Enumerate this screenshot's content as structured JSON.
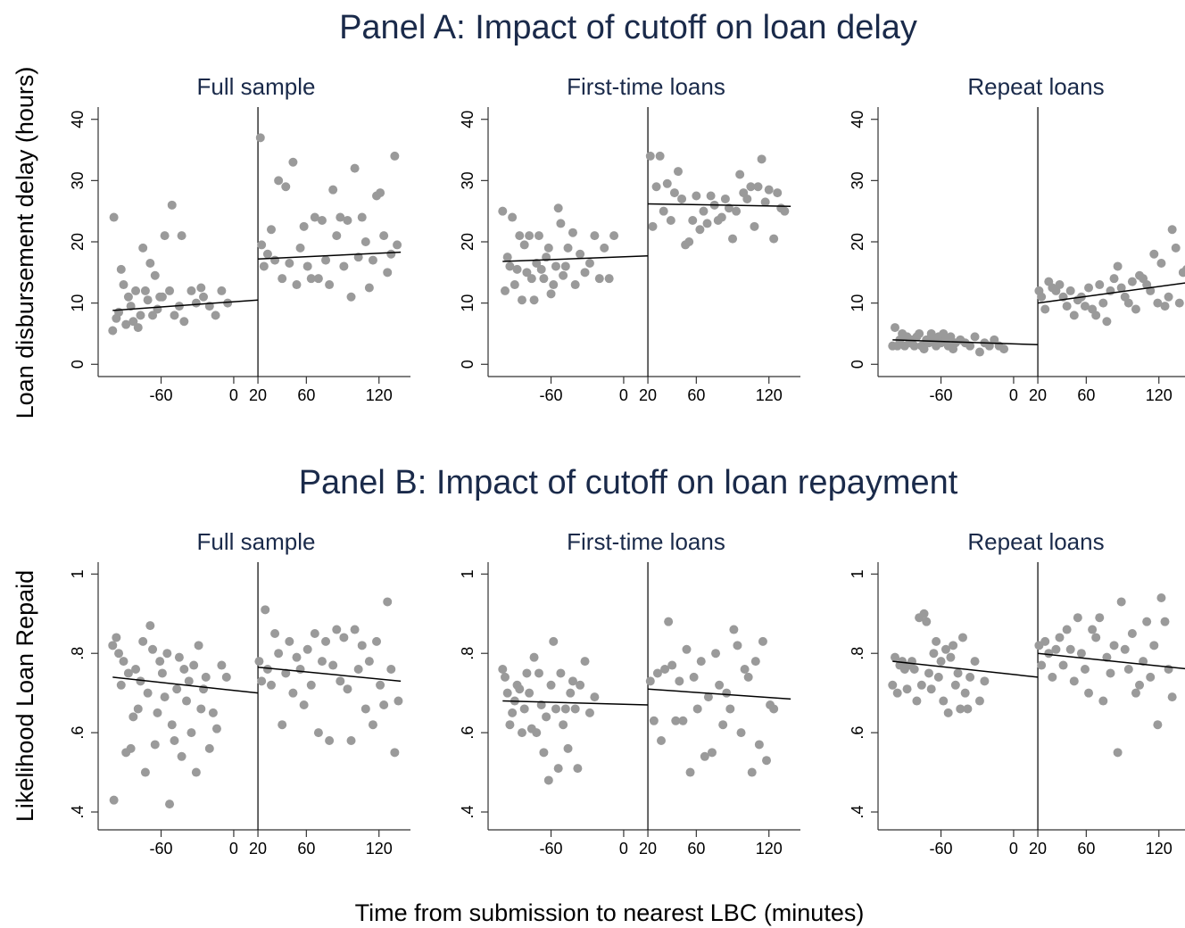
{
  "panel_a_title": "Panel A: Impact of cutoff on loan delay",
  "panel_b_title": "Panel B: Impact of cutoff on loan repayment",
  "y_label_a": "Loan disbursement delay (hours)",
  "y_label_b": "Likelihood Loan Repaid",
  "x_label": "Time from submission to nearest LBC (minutes)",
  "chart_data": [
    {
      "type": "scatter",
      "title": "Full sample",
      "color": "#9a9a9a",
      "cutoff": 20,
      "xlim": [
        -112,
        146
      ],
      "xticks": [
        -60,
        0,
        20,
        60,
        120
      ],
      "ylim": [
        -2,
        42
      ],
      "yticks": [
        0,
        10,
        20,
        30,
        40
      ],
      "x": [
        -100,
        -99,
        -97,
        -95,
        -93,
        -91,
        -89,
        -87,
        -85,
        -83,
        -81,
        -79,
        -77,
        -75,
        -73,
        -71,
        -69,
        -67,
        -65,
        -63,
        -61,
        -59,
        -57,
        -53,
        -51,
        -49,
        -45,
        -43,
        -41,
        -35,
        -31,
        -27,
        -25,
        -20,
        -15,
        -10,
        -5,
        22,
        23,
        25,
        28,
        31,
        34,
        37,
        40,
        43,
        46,
        49,
        52,
        55,
        58,
        61,
        64,
        67,
        70,
        73,
        76,
        79,
        82,
        85,
        88,
        91,
        94,
        97,
        100,
        103,
        106,
        109,
        112,
        115,
        118,
        121,
        124,
        127,
        130,
        133,
        135
      ],
      "y": [
        5.5,
        24,
        7.5,
        8.5,
        15.5,
        13,
        6.5,
        11,
        9.5,
        7,
        12,
        6,
        8,
        19,
        12,
        10.5,
        16.5,
        8,
        14.5,
        9,
        11,
        11,
        21,
        12,
        26,
        8,
        9.5,
        21,
        7,
        12,
        10,
        12.5,
        11,
        9.5,
        8,
        12,
        10,
        37,
        19.5,
        16,
        18,
        22,
        17,
        30,
        14,
        29,
        16.5,
        33,
        13,
        19,
        22.5,
        16,
        14,
        24,
        14,
        23.5,
        17,
        13,
        28.5,
        21,
        24,
        16,
        23.5,
        11,
        32,
        17.5,
        24,
        20,
        12.5,
        17,
        27.5,
        28,
        21,
        15,
        18,
        34,
        19.5
      ],
      "fit": [
        {
          "x": [
            -100,
            20
          ],
          "y": [
            8.8,
            10.5
          ]
        },
        {
          "x": [
            20,
            138
          ],
          "y": [
            17.2,
            18.3
          ]
        }
      ]
    },
    {
      "type": "scatter",
      "title": "First-time loans",
      "color": "#9a9a9a",
      "cutoff": 20,
      "xlim": [
        -112,
        146
      ],
      "xticks": [
        -60,
        0,
        20,
        60,
        120
      ],
      "ylim": [
        -2,
        42
      ],
      "yticks": [
        0,
        10,
        20,
        30,
        40
      ],
      "x": [
        -100,
        -98,
        -96,
        -94,
        -92,
        -90,
        -88,
        -86,
        -84,
        -82,
        -80,
        -78,
        -76,
        -74,
        -72,
        -70,
        -68,
        -66,
        -64,
        -62,
        -60,
        -58,
        -56,
        -54,
        -52,
        -50,
        -48,
        -46,
        -42,
        -40,
        -36,
        -32,
        -28,
        -24,
        -20,
        -16,
        -12,
        -8,
        22,
        24,
        27,
        30,
        33,
        36,
        39,
        42,
        45,
        48,
        51,
        54,
        57,
        60,
        63,
        66,
        69,
        72,
        75,
        78,
        81,
        84,
        87,
        90,
        93,
        96,
        99,
        102,
        105,
        108,
        111,
        114,
        117,
        120,
        124,
        127,
        130,
        133
      ],
      "y": [
        25,
        12,
        17.5,
        16,
        24,
        13,
        15.5,
        21,
        10.5,
        19.5,
        15,
        21,
        14,
        10.5,
        16.5,
        21,
        15.5,
        14,
        17.5,
        19,
        11.5,
        13,
        16,
        25.5,
        23,
        14.5,
        16,
        19,
        21.5,
        13,
        18,
        15,
        16.5,
        21,
        14,
        19,
        14,
        21,
        34,
        22.5,
        29,
        34,
        25,
        29.5,
        23.5,
        28,
        31.5,
        27,
        19.5,
        20,
        23.5,
        27.5,
        22,
        25,
        23,
        27.5,
        26,
        23.5,
        24,
        27,
        25.5,
        20.5,
        25,
        31,
        28,
        27,
        29,
        22.5,
        29,
        33.5,
        26.5,
        28.5,
        20.5,
        28,
        25.5,
        25
      ],
      "fit": [
        {
          "x": [
            -100,
            20
          ],
          "y": [
            16.8,
            17.7
          ]
        },
        {
          "x": [
            20,
            138
          ],
          "y": [
            26.2,
            25.8
          ]
        }
      ]
    },
    {
      "type": "scatter",
      "title": "Repeat loans",
      "color": "#9a9a9a",
      "cutoff": 20,
      "xlim": [
        -112,
        146
      ],
      "xticks": [
        -60,
        0,
        20,
        60,
        120
      ],
      "ylim": [
        -2,
        42
      ],
      "yticks": [
        0,
        10,
        20,
        30,
        40
      ],
      "x": [
        -100,
        -98,
        -96,
        -94,
        -92,
        -90,
        -88,
        -86,
        -84,
        -82,
        -80,
        -78,
        -76,
        -74,
        -72,
        -70,
        -68,
        -66,
        -64,
        -62,
        -60,
        -58,
        -56,
        -54,
        -52,
        -50,
        -48,
        -44,
        -40,
        -36,
        -32,
        -28,
        -24,
        -20,
        -16,
        -12,
        -8,
        21,
        23,
        26,
        29,
        32,
        35,
        38,
        41,
        44,
        47,
        50,
        53,
        56,
        59,
        62,
        65,
        68,
        71,
        74,
        77,
        80,
        83,
        86,
        89,
        92,
        95,
        98,
        101,
        104,
        107,
        110,
        113,
        116,
        119,
        122,
        125,
        128,
        131,
        134,
        137,
        140,
        143
      ],
      "y": [
        3,
        6,
        3,
        4,
        5,
        3,
        4.5,
        3.5,
        4,
        3,
        4.5,
        5,
        3,
        2.5,
        4,
        3.5,
        5,
        4,
        3,
        4.5,
        3.5,
        5,
        4,
        3,
        4.5,
        2.5,
        3.5,
        4,
        3.5,
        3,
        4.5,
        2,
        3.5,
        3,
        4,
        3,
        2.5,
        12,
        11,
        9,
        13.5,
        12.5,
        12,
        13,
        11,
        9.5,
        12,
        8,
        10.5,
        11,
        9.5,
        12.5,
        9,
        8,
        13,
        10,
        7,
        12,
        14,
        16,
        12.5,
        11,
        10,
        13.5,
        9,
        14.5,
        14,
        13,
        12,
        18,
        10,
        16.5,
        9.5,
        11,
        22,
        19,
        10,
        15,
        15.5
      ],
      "fit": [
        {
          "x": [
            -100,
            20
          ],
          "y": [
            4.0,
            3.2
          ]
        },
        {
          "x": [
            20,
            146
          ],
          "y": [
            10,
            13.4
          ]
        }
      ]
    },
    {
      "type": "scatter",
      "title": "Full sample",
      "color": "#9a9a9a",
      "cutoff": 20,
      "xlim": [
        -112,
        146
      ],
      "xticks": [
        -60,
        0,
        20,
        60,
        120
      ],
      "ylim": [
        0.355,
        1.03
      ],
      "yticks": [
        {
          "value": 0.4,
          "label": ".4"
        },
        {
          "value": 0.6,
          "label": ".6"
        },
        {
          "value": 0.8,
          "label": ".8"
        },
        1
      ],
      "x": [
        -100,
        -99,
        -97,
        -95,
        -93,
        -91,
        -89,
        -87,
        -85,
        -83,
        -81,
        -79,
        -77,
        -75,
        -73,
        -71,
        -69,
        -67,
        -65,
        -63,
        -61,
        -59,
        -57,
        -55,
        -53,
        -51,
        -49,
        -47,
        -45,
        -43,
        -41,
        -39,
        -37,
        -35,
        -33,
        -31,
        -29,
        -27,
        -25,
        -23,
        -20,
        -17,
        -14,
        -10,
        -6,
        21,
        23,
        26,
        28,
        31,
        34,
        37,
        40,
        43,
        46,
        49,
        52,
        55,
        58,
        61,
        64,
        67,
        70,
        73,
        76,
        79,
        82,
        85,
        88,
        91,
        94,
        97,
        100,
        103,
        106,
        109,
        112,
        115,
        118,
        121,
        124,
        127,
        130,
        133,
        136
      ],
      "y": [
        0.82,
        0.43,
        0.84,
        0.8,
        0.72,
        0.78,
        0.55,
        0.75,
        0.56,
        0.64,
        0.76,
        0.66,
        0.73,
        0.83,
        0.5,
        0.7,
        0.87,
        0.81,
        0.57,
        0.65,
        0.78,
        0.75,
        0.69,
        0.8,
        0.42,
        0.62,
        0.58,
        0.71,
        0.79,
        0.54,
        0.76,
        0.68,
        0.73,
        0.6,
        0.77,
        0.5,
        0.82,
        0.66,
        0.71,
        0.74,
        0.56,
        0.65,
        0.61,
        0.77,
        0.74,
        0.78,
        0.73,
        0.91,
        0.76,
        0.72,
        0.85,
        0.8,
        0.62,
        0.75,
        0.83,
        0.7,
        0.79,
        0.76,
        0.67,
        0.81,
        0.72,
        0.85,
        0.6,
        0.78,
        0.83,
        0.58,
        0.77,
        0.86,
        0.73,
        0.84,
        0.71,
        0.58,
        0.86,
        0.76,
        0.82,
        0.66,
        0.78,
        0.62,
        0.83,
        0.72,
        0.67,
        0.93,
        0.76,
        0.55,
        0.68
      ],
      "fit": [
        {
          "x": [
            -100,
            20
          ],
          "y": [
            0.74,
            0.7
          ]
        },
        {
          "x": [
            20,
            138
          ],
          "y": [
            0.765,
            0.73
          ]
        }
      ]
    },
    {
      "type": "scatter",
      "title": "First-time loans",
      "color": "#9a9a9a",
      "cutoff": 20,
      "xlim": [
        -112,
        146
      ],
      "xticks": [
        -60,
        0,
        20,
        60,
        120
      ],
      "ylim": [
        0.355,
        1.03
      ],
      "yticks": [
        {
          "value": 0.4,
          "label": ".4"
        },
        {
          "value": 0.6,
          "label": ".6"
        },
        {
          "value": 0.8,
          "label": ".8"
        },
        1
      ],
      "x": [
        -100,
        -98,
        -96,
        -94,
        -92,
        -90,
        -88,
        -86,
        -84,
        -82,
        -80,
        -78,
        -76,
        -74,
        -72,
        -70,
        -68,
        -66,
        -64,
        -62,
        -60,
        -58,
        -56,
        -54,
        -52,
        -50,
        -48,
        -46,
        -44,
        -42,
        -40,
        -38,
        -36,
        -32,
        -28,
        -24,
        22,
        25,
        28,
        31,
        34,
        37,
        40,
        43,
        46,
        49,
        52,
        55,
        58,
        61,
        64,
        67,
        70,
        73,
        76,
        79,
        82,
        85,
        88,
        91,
        94,
        97,
        100,
        103,
        106,
        109,
        112,
        115,
        118,
        121,
        124
      ],
      "y": [
        0.76,
        0.74,
        0.7,
        0.62,
        0.65,
        0.68,
        0.72,
        0.71,
        0.6,
        0.66,
        0.75,
        0.7,
        0.61,
        0.79,
        0.6,
        0.75,
        0.67,
        0.55,
        0.64,
        0.48,
        0.72,
        0.83,
        0.66,
        0.51,
        0.75,
        0.62,
        0.66,
        0.56,
        0.7,
        0.73,
        0.66,
        0.51,
        0.72,
        0.78,
        0.65,
        0.69,
        0.73,
        0.63,
        0.75,
        0.58,
        0.76,
        0.88,
        0.77,
        0.63,
        0.73,
        0.63,
        0.81,
        0.5,
        0.74,
        0.66,
        0.78,
        0.54,
        0.69,
        0.55,
        0.8,
        0.72,
        0.62,
        0.7,
        0.66,
        0.86,
        0.82,
        0.6,
        0.76,
        0.74,
        0.5,
        0.78,
        0.57,
        0.83,
        0.53,
        0.67,
        0.66
      ],
      "fit": [
        {
          "x": [
            -100,
            20
          ],
          "y": [
            0.68,
            0.67
          ]
        },
        {
          "x": [
            20,
            138
          ],
          "y": [
            0.71,
            0.685
          ]
        }
      ]
    },
    {
      "type": "scatter",
      "title": "Repeat loans",
      "color": "#9a9a9a",
      "cutoff": 20,
      "xlim": [
        -112,
        146
      ],
      "xticks": [
        -60,
        0,
        20,
        60,
        120
      ],
      "ylim": [
        0.355,
        1.03
      ],
      "yticks": [
        {
          "value": 0.4,
          "label": ".4"
        },
        {
          "value": 0.6,
          "label": ".6"
        },
        {
          "value": 0.8,
          "label": ".8"
        },
        1
      ],
      "x": [
        -100,
        -98,
        -96,
        -94,
        -92,
        -90,
        -88,
        -86,
        -84,
        -82,
        -80,
        -78,
        -76,
        -74,
        -72,
        -70,
        -68,
        -66,
        -64,
        -62,
        -60,
        -58,
        -56,
        -54,
        -52,
        -50,
        -48,
        -46,
        -44,
        -42,
        -40,
        -38,
        -36,
        -32,
        -28,
        -24,
        21,
        23,
        26,
        29,
        32,
        35,
        38,
        41,
        44,
        47,
        50,
        53,
        56,
        59,
        62,
        65,
        68,
        71,
        74,
        77,
        80,
        83,
        86,
        89,
        92,
        95,
        98,
        101,
        104,
        107,
        110,
        113,
        116,
        119,
        122,
        125,
        128,
        131
      ],
      "y": [
        0.72,
        0.79,
        0.7,
        0.77,
        0.78,
        0.76,
        0.71,
        0.77,
        0.78,
        0.76,
        0.68,
        0.89,
        0.72,
        0.9,
        0.88,
        0.75,
        0.71,
        0.8,
        0.83,
        0.74,
        0.78,
        0.68,
        0.81,
        0.65,
        0.79,
        0.82,
        0.72,
        0.75,
        0.66,
        0.84,
        0.7,
        0.66,
        0.74,
        0.78,
        0.68,
        0.73,
        0.82,
        0.77,
        0.83,
        0.8,
        0.74,
        0.81,
        0.84,
        0.77,
        0.86,
        0.81,
        0.73,
        0.89,
        0.8,
        0.76,
        0.7,
        0.86,
        0.84,
        0.89,
        0.68,
        0.79,
        0.75,
        0.82,
        0.55,
        0.93,
        0.81,
        0.76,
        0.85,
        0.7,
        0.72,
        0.78,
        0.88,
        0.74,
        0.82,
        0.62,
        0.94,
        0.88,
        0.76,
        0.69
      ],
      "fit": [
        {
          "x": [
            -100,
            20
          ],
          "y": [
            0.78,
            0.74
          ]
        },
        {
          "x": [
            20,
            146
          ],
          "y": [
            0.8,
            0.76
          ]
        }
      ]
    }
  ]
}
